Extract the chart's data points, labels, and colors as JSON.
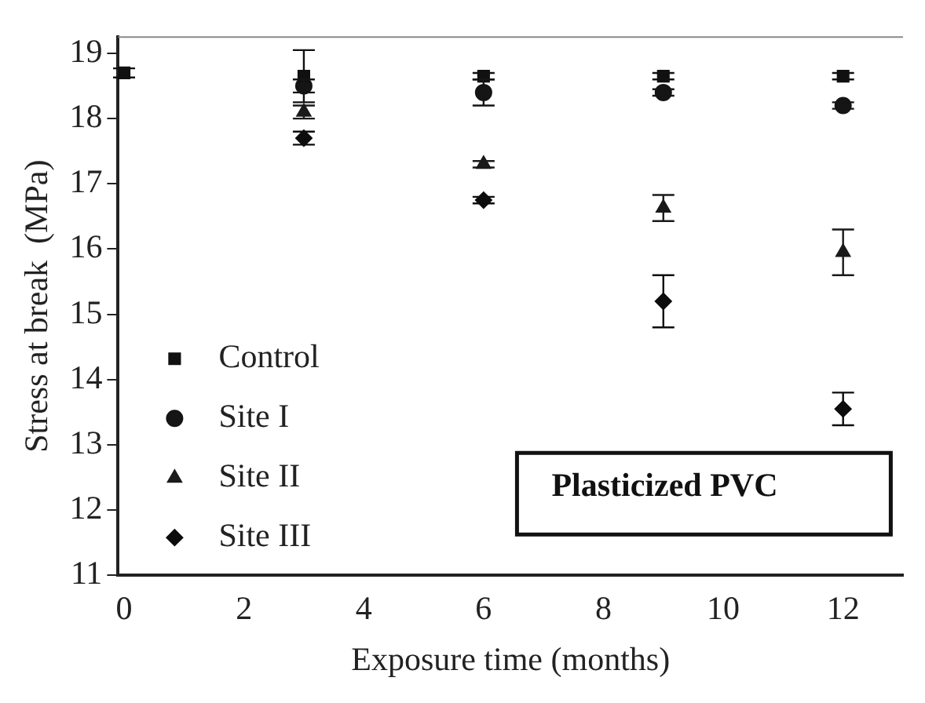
{
  "chart_data": {
    "type": "scatter",
    "xlabel": "Exposure time (months)",
    "ylabel": "Stress at break  (MPa)",
    "x": [
      0,
      3,
      6,
      9,
      12
    ],
    "series": [
      {
        "name": "Control",
        "color": "#111111",
        "marker": "square",
        "values": [
          18.7,
          18.65,
          18.65,
          18.65,
          18.65
        ],
        "errors": [
          0.07,
          0.4,
          0.05,
          0.05,
          0.05
        ]
      },
      {
        "name": "Site I",
        "color": "#151515",
        "marker": "circle",
        "values": [
          null,
          18.5,
          18.4,
          18.4,
          18.2
        ],
        "errors": [
          null,
          0.1,
          0.2,
          0.05,
          0.05
        ]
      },
      {
        "name": "Site II",
        "color": "#1a1a1a",
        "marker": "triangle",
        "values": [
          null,
          18.1,
          17.3,
          16.63,
          15.95
        ],
        "errors": [
          null,
          0.1,
          0.05,
          0.2,
          0.35
        ]
      },
      {
        "name": "Site III",
        "color": "#0d0d0d",
        "marker": "diamond",
        "values": [
          null,
          17.7,
          16.75,
          15.2,
          13.55
        ],
        "errors": [
          null,
          0.1,
          0.05,
          0.4,
          0.25
        ]
      }
    ],
    "xlim": [
      -0.1,
      13
    ],
    "xticks": [
      0,
      2,
      4,
      6,
      8,
      10,
      12
    ],
    "ylim": [
      11,
      19.25
    ],
    "yticks": [
      11,
      12,
      13,
      14,
      15,
      16,
      17,
      18,
      19
    ],
    "grid": false,
    "legend": "bottom left",
    "annotations": [
      "Plasticized PVC"
    ]
  }
}
